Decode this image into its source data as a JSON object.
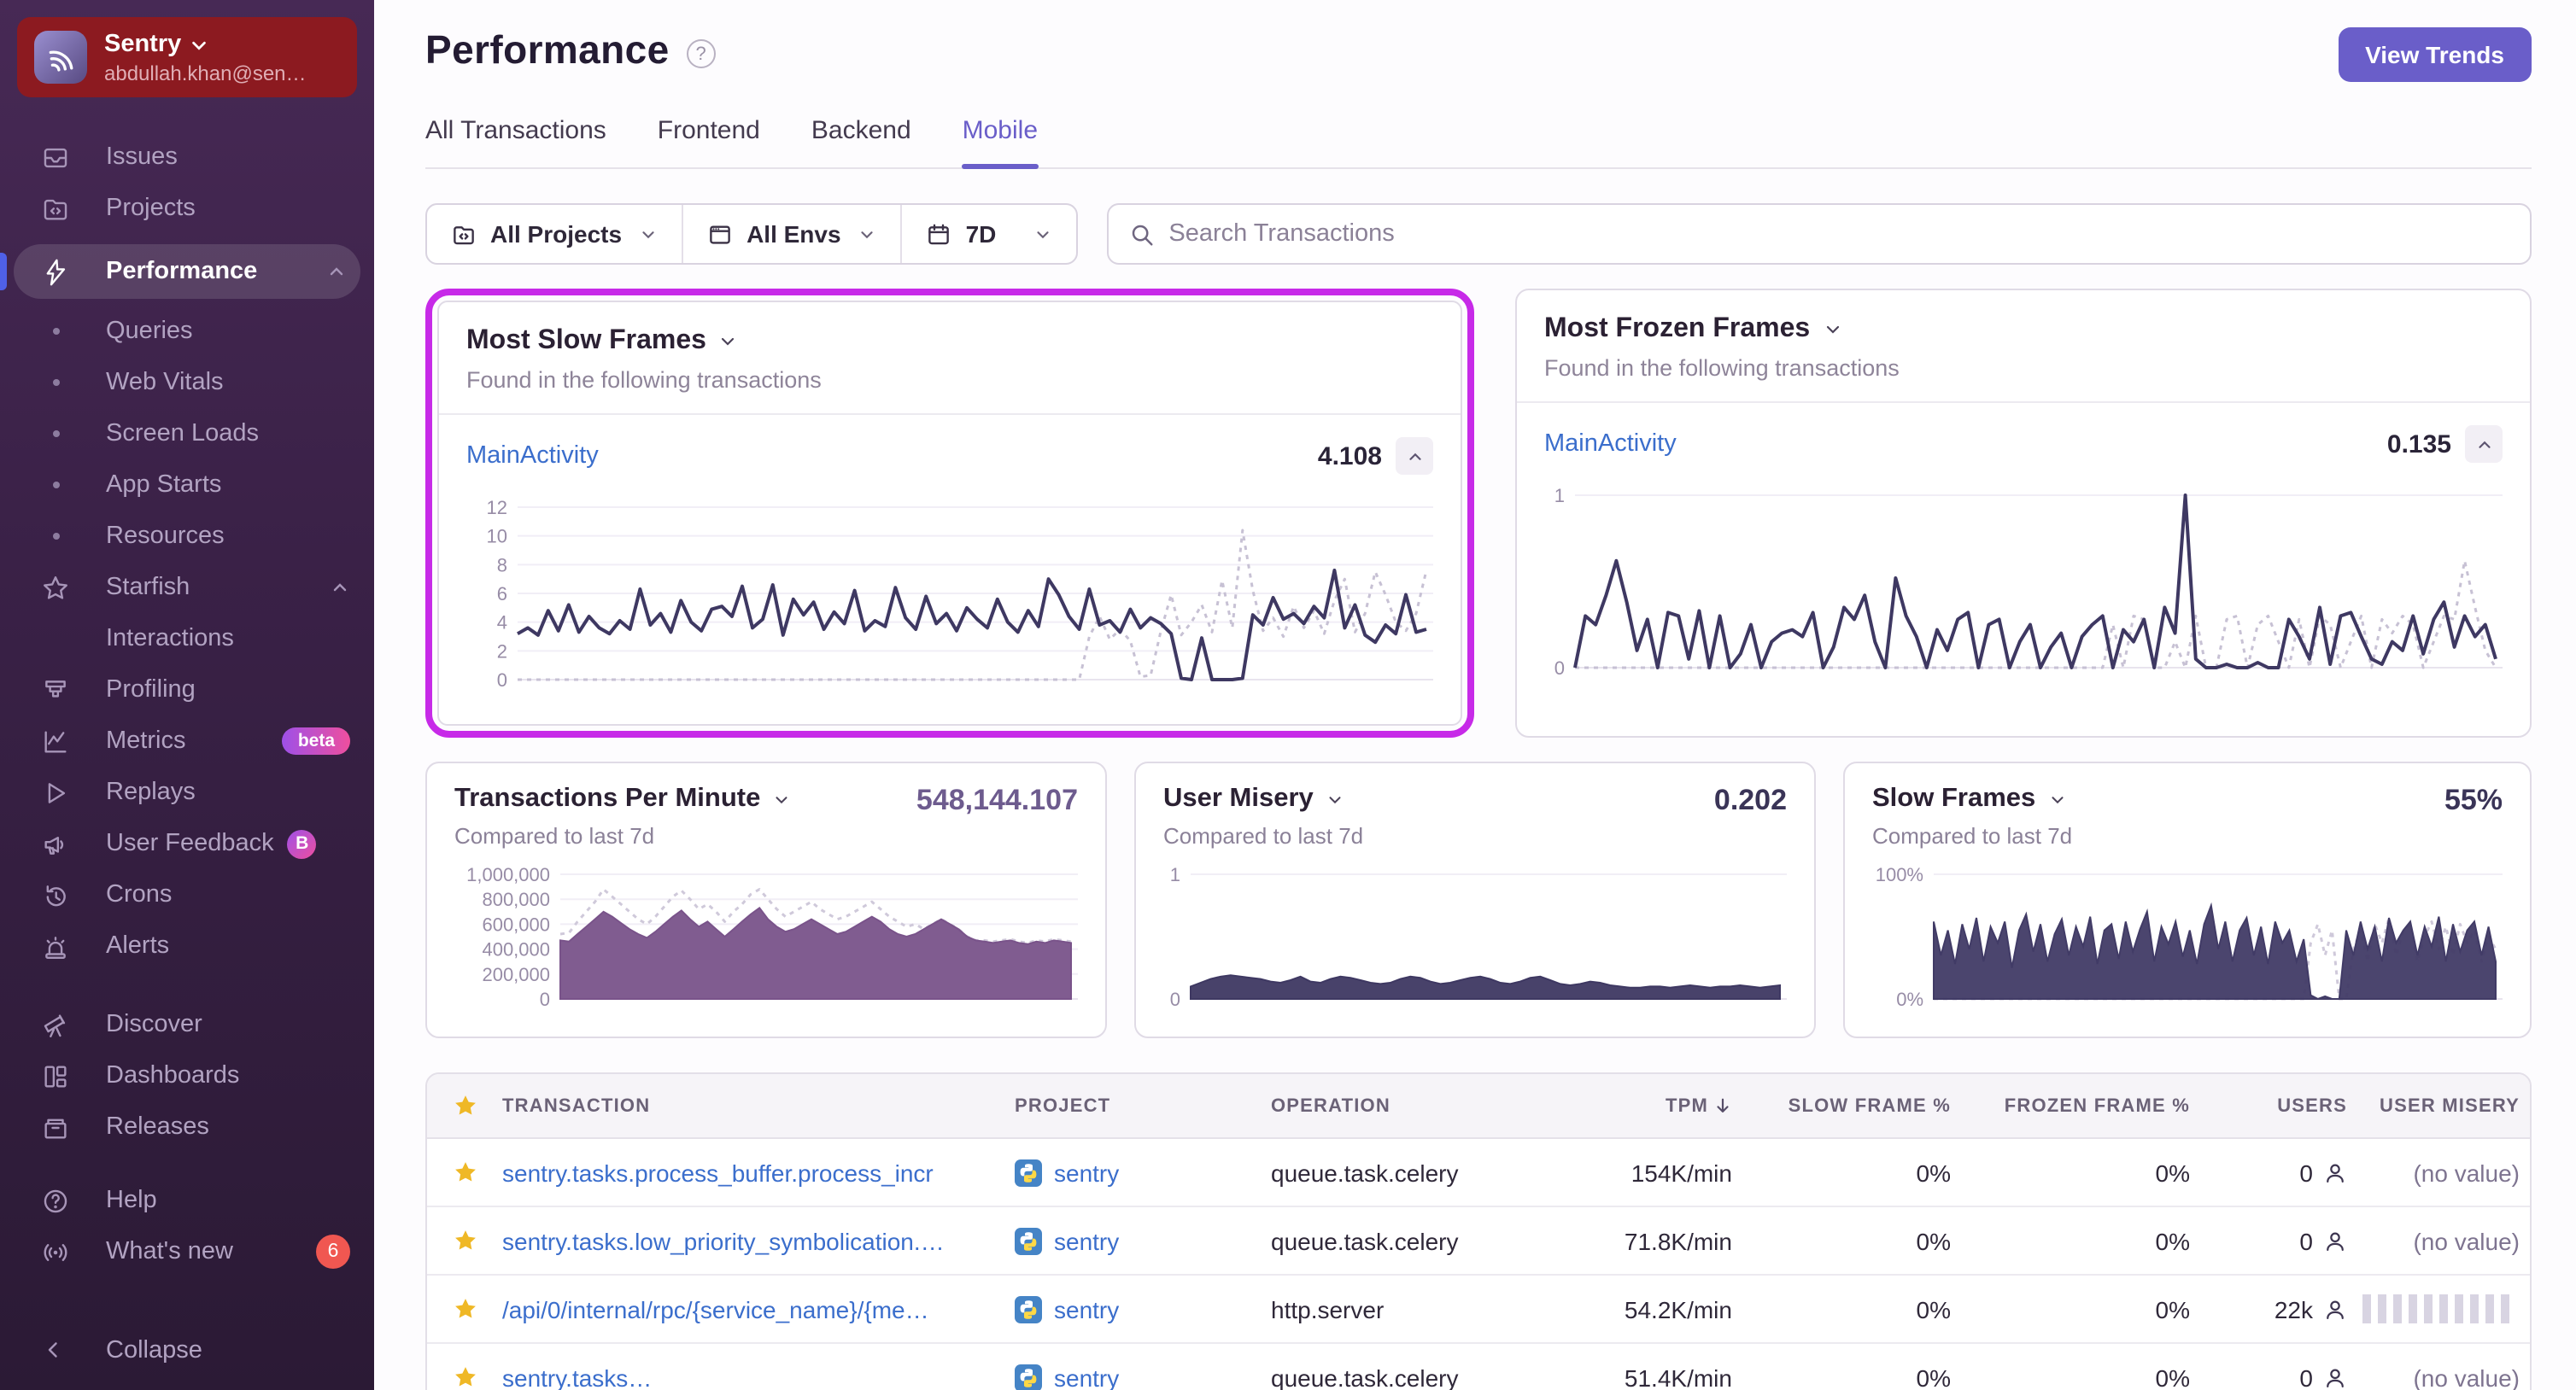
{
  "app": {
    "accent": "#6a5ec9",
    "highlight_ring": "#c72ae8",
    "link_blue": "#3b6ecc"
  },
  "sidebar": {
    "org": "Sentry",
    "email": "abdullah.khan@sen…",
    "items": [
      {
        "label": "Issues"
      },
      {
        "label": "Projects"
      },
      {
        "label": "Performance"
      },
      {
        "label": "Queries"
      },
      {
        "label": "Web Vitals"
      },
      {
        "label": "Screen Loads"
      },
      {
        "label": "App Starts"
      },
      {
        "label": "Resources"
      },
      {
        "label": "Starfish"
      },
      {
        "label": "Interactions"
      },
      {
        "label": "Profiling"
      },
      {
        "label": "Metrics",
        "badge": "beta"
      },
      {
        "label": "Replays"
      },
      {
        "label": "User Feedback",
        "badge": "B"
      },
      {
        "label": "Crons"
      },
      {
        "label": "Alerts"
      },
      {
        "label": "Discover"
      },
      {
        "label": "Dashboards"
      },
      {
        "label": "Releases"
      },
      {
        "label": "Help"
      },
      {
        "label": "What's new",
        "badge": "6"
      },
      {
        "label": "Collapse"
      }
    ]
  },
  "header": {
    "title": "Performance",
    "help": "?",
    "view_trends": "View Trends",
    "tabs": [
      {
        "label": "All Transactions"
      },
      {
        "label": "Frontend"
      },
      {
        "label": "Backend"
      },
      {
        "label": "Mobile"
      }
    ]
  },
  "filters": {
    "projects": "All Projects",
    "envs": "All Envs",
    "period": "7D",
    "search_placeholder": "Search Transactions"
  },
  "cards": [
    {
      "title": "Most Slow Frames",
      "subtitle": "Found in the following transactions",
      "transaction": "MainActivity",
      "value": "4.108"
    },
    {
      "title": "Most Frozen Frames",
      "subtitle": "Found in the following transactions",
      "transaction": "MainActivity",
      "value": "0.135"
    }
  ],
  "widgets": [
    {
      "title": "Transactions Per Minute",
      "value": "548,144.107",
      "subtitle": "Compared to last 7d"
    },
    {
      "title": "User Misery",
      "value": "0.202",
      "subtitle": "Compared to last 7d"
    },
    {
      "title": "Slow Frames",
      "value": "55%",
      "subtitle": "Compared to last 7d"
    }
  ],
  "table": {
    "headers": {
      "transaction": "Transaction",
      "project": "Project",
      "operation": "Operation",
      "tpm": "TPM",
      "slow": "Slow Frame %",
      "frozen": "Frozen Frame %",
      "users": "Users",
      "misery": "User Misery"
    },
    "rows": [
      {
        "transaction": "sentry.tasks.process_buffer.process_incr",
        "project": "sentry",
        "operation": "queue.task.celery",
        "tpm": "154K/min",
        "slow": "0%",
        "frozen": "0%",
        "users": "0",
        "misery": "(no value)",
        "misery_type": "text"
      },
      {
        "transaction": "sentry.tasks.low_priority_symbolication.…",
        "project": "sentry",
        "operation": "queue.task.celery",
        "tpm": "71.8K/min",
        "slow": "0%",
        "frozen": "0%",
        "users": "0",
        "misery": "(no value)",
        "misery_type": "text"
      },
      {
        "transaction": "/api/0/internal/rpc/{service_name}/{me…",
        "project": "sentry",
        "operation": "http.server",
        "tpm": "54.2K/min",
        "slow": "0%",
        "frozen": "0%",
        "users": "22k",
        "misery": "",
        "misery_type": "bars"
      },
      {
        "transaction": "sentry.tasks…",
        "project": "sentry",
        "operation": "queue.task.celery",
        "tpm": "51.4K/min",
        "slow": "0%",
        "frozen": "0%",
        "users": "0",
        "misery": "(no value)",
        "misery_type": "text"
      }
    ]
  },
  "chart_data": {
    "note": "see charts key — all series data for the five charts on screen"
  },
  "charts": {
    "slow_frames_card": {
      "type": "line",
      "ylim": [
        0,
        12
      ],
      "axis_w": 30,
      "yticks": [
        {
          "v": 0,
          "label": "0"
        },
        {
          "v": 2,
          "label": "2"
        },
        {
          "v": 4,
          "label": "4"
        },
        {
          "v": 6,
          "label": "6"
        },
        {
          "v": 8,
          "label": "8"
        },
        {
          "v": 10,
          "label": "10"
        },
        {
          "v": 12,
          "label": "12"
        }
      ],
      "series": [
        {
          "name": "previous period",
          "color": "#c7c1d4",
          "dash": true,
          "width": 1.5,
          "values": [
            0,
            0,
            0,
            0,
            0,
            0,
            0,
            0,
            0,
            0,
            0,
            0,
            0,
            0,
            0,
            0,
            0,
            0,
            0,
            0,
            0,
            0,
            0,
            0,
            0,
            0,
            0,
            0,
            0,
            0,
            0,
            0,
            0,
            0,
            0,
            0,
            0,
            0,
            0,
            0,
            0,
            0,
            0,
            0,
            0,
            0,
            0,
            0,
            0,
            0,
            0,
            0,
            0,
            0,
            0,
            0,
            3.0,
            4.4,
            2.8,
            3.5,
            2.7,
            0.2,
            0.3,
            3.4,
            5.9,
            3.1,
            4.0,
            5.2,
            3.3,
            6.9,
            3.6,
            10.4,
            6.2,
            3.4,
            4.3,
            3.0,
            5.1,
            3.6,
            4.8,
            3.2,
            5.5,
            7.0,
            3.3,
            4.6,
            7.5,
            5.9,
            4.0,
            3.4,
            4.6,
            7.6
          ]
        },
        {
          "name": "current period",
          "color": "#3e3862",
          "width": 2,
          "values": [
            3.2,
            3.6,
            3.1,
            4.8,
            3.4,
            5.2,
            3.3,
            4.4,
            3.6,
            3.2,
            4.1,
            3.5,
            6.3,
            3.8,
            4.6,
            3.3,
            5.5,
            4.0,
            3.4,
            4.9,
            5.1,
            4.4,
            6.5,
            3.6,
            4.2,
            6.6,
            3.1,
            5.6,
            4.5,
            5.4,
            3.5,
            4.7,
            3.9,
            6.2,
            3.4,
            4.1,
            3.7,
            6.4,
            4.3,
            3.5,
            5.8,
            3.9,
            4.6,
            3.4,
            5.0,
            4.2,
            3.6,
            5.6,
            4.0,
            3.3,
            4.8,
            3.7,
            7.0,
            5.9,
            4.4,
            3.5,
            6.3,
            3.8,
            4.1,
            3.3,
            4.9,
            3.6,
            4.3,
            3.9,
            3.2,
            0.1,
            0.0,
            2.9,
            0.0,
            0.0,
            0.0,
            0.1,
            4.5,
            3.8,
            5.7,
            4.2,
            4.6,
            3.9,
            5.1,
            4.3,
            7.6,
            3.6,
            5.2,
            3.1,
            2.6,
            3.8,
            3.2,
            5.9,
            3.3,
            3.5
          ]
        }
      ]
    },
    "frozen_frames_card": {
      "type": "line",
      "ylim": [
        0,
        1
      ],
      "axis_w": 18,
      "yticks": [
        {
          "v": 0,
          "label": "0"
        },
        {
          "v": 1,
          "label": "1"
        }
      ],
      "series": [
        {
          "name": "previous period",
          "color": "#c7c1d4",
          "dash": true,
          "width": 1.5,
          "values": [
            0,
            0,
            0,
            0,
            0,
            0,
            0,
            0,
            0,
            0,
            0,
            0,
            0,
            0,
            0,
            0,
            0,
            0,
            0,
            0,
            0,
            0,
            0,
            0,
            0,
            0,
            0,
            0,
            0,
            0,
            0,
            0,
            0,
            0,
            0,
            0,
            0,
            0,
            0,
            0,
            0,
            0,
            0,
            0,
            0,
            0,
            0,
            0,
            0,
            0,
            0,
            0,
            0.25,
            0,
            0.3,
            0.28,
            0,
            0,
            0.15,
            0,
            0.3,
            0,
            0,
            0.28,
            0.3,
            0,
            0.25,
            0.3,
            0.15,
            0,
            0.28,
            0,
            0.3,
            0.25,
            0,
            0.15,
            0.3,
            0,
            0.28,
            0.2,
            0.3,
            0.25,
            0,
            0.15,
            0.3,
            0.28,
            0.62,
            0.35,
            0.1,
            0
          ]
        },
        {
          "name": "current period",
          "color": "#3e3862",
          "width": 2,
          "values": [
            0,
            0.3,
            0.25,
            0.42,
            0.62,
            0.38,
            0.1,
            0.28,
            0,
            0.32,
            0.3,
            0.05,
            0.33,
            0,
            0.3,
            0,
            0.08,
            0.25,
            0,
            0.15,
            0.2,
            0.22,
            0.18,
            0.32,
            0,
            0.12,
            0.35,
            0.28,
            0.42,
            0.15,
            0,
            0.52,
            0.3,
            0.18,
            0,
            0.22,
            0.1,
            0.28,
            0.32,
            0,
            0.25,
            0.28,
            0,
            0.15,
            0.25,
            0,
            0.12,
            0.2,
            0,
            0.18,
            0.25,
            0.3,
            0,
            0.22,
            0.15,
            0.28,
            0,
            0.35,
            0.2,
            1.0,
            0.05,
            0,
            0,
            0.02,
            0,
            0,
            0.03,
            0,
            0,
            0.28,
            0.18,
            0.05,
            0.35,
            0.02,
            0.3,
            0.32,
            0.18,
            0.05,
            0.02,
            0.15,
            0.1,
            0.3,
            0.08,
            0.28,
            0.38,
            0.12,
            0.3,
            0.18,
            0.25,
            0.05
          ]
        }
      ]
    },
    "tpm_widget": {
      "type": "area",
      "ylim": [
        0,
        1000000
      ],
      "axis_w": 62,
      "yticks": [
        {
          "v": 0,
          "label": "0"
        },
        {
          "v": 200000,
          "label": "200,000"
        },
        {
          "v": 400000,
          "label": "400,000"
        },
        {
          "v": 600000,
          "label": "600,000"
        },
        {
          "v": 800000,
          "label": "800,000"
        },
        {
          "v": 1000000,
          "label": "1,000,000"
        }
      ],
      "series": [
        {
          "name": "previous period",
          "color": "#cfc9da",
          "dash": true,
          "width": 1.5,
          "values": [
            520000,
            530000,
            620000,
            700000,
            780000,
            880000,
            820000,
            760000,
            700000,
            640000,
            600000,
            660000,
            740000,
            820000,
            870000,
            800000,
            720000,
            760000,
            700000,
            620000,
            700000,
            760000,
            840000,
            880000,
            800000,
            720000,
            660000,
            700000,
            740000,
            780000,
            720000,
            680000,
            640000,
            660000,
            700000,
            740000,
            780000,
            720000,
            660000,
            620000,
            580000,
            600000,
            560000,
            600000,
            640000,
            600000,
            560000,
            500000,
            470000,
            470000,
            460000,
            470000,
            480000,
            460000,
            450000,
            470000,
            460000,
            480000,
            470000,
            460000
          ]
        },
        {
          "name": "current period",
          "color": "#79538a",
          "area": true,
          "width": 1.5,
          "values": [
            470000,
            460000,
            520000,
            580000,
            640000,
            700000,
            660000,
            610000,
            560000,
            520000,
            490000,
            540000,
            600000,
            660000,
            710000,
            640000,
            580000,
            620000,
            560000,
            500000,
            560000,
            620000,
            680000,
            730000,
            640000,
            580000,
            540000,
            560000,
            600000,
            640000,
            600000,
            560000,
            520000,
            540000,
            580000,
            620000,
            660000,
            620000,
            560000,
            520000,
            500000,
            520000,
            560000,
            600000,
            640000,
            600000,
            560000,
            500000,
            470000,
            460000,
            450000,
            460000,
            470000,
            450000,
            440000,
            460000,
            450000,
            470000,
            460000,
            450000
          ]
        }
      ]
    },
    "misery_widget": {
      "type": "area",
      "ylim": [
        0,
        1
      ],
      "axis_w": 16,
      "yticks": [
        {
          "v": 0,
          "label": "0"
        },
        {
          "v": 1,
          "label": "1"
        }
      ],
      "series": [
        {
          "name": "current period",
          "color": "#3e3862",
          "area": true,
          "width": 1.5,
          "values": [
            0.1,
            0.13,
            0.16,
            0.18,
            0.19,
            0.18,
            0.17,
            0.16,
            0.14,
            0.13,
            0.15,
            0.18,
            0.14,
            0.13,
            0.16,
            0.18,
            0.17,
            0.15,
            0.13,
            0.12,
            0.13,
            0.16,
            0.18,
            0.17,
            0.14,
            0.12,
            0.13,
            0.15,
            0.17,
            0.18,
            0.16,
            0.13,
            0.12,
            0.14,
            0.17,
            0.18,
            0.15,
            0.12,
            0.11,
            0.12,
            0.14,
            0.13,
            0.11,
            0.1,
            0.09,
            0.09,
            0.1,
            0.1,
            0.09,
            0.1,
            0.11,
            0.1,
            0.09,
            0.1,
            0.1,
            0.11,
            0.1,
            0.09,
            0.1,
            0.11
          ]
        }
      ]
    },
    "slow_frames_widget": {
      "type": "area",
      "ylim": [
        0,
        100
      ],
      "axis_w": 36,
      "yticks": [
        {
          "v": 0,
          "label": "0%"
        },
        {
          "v": 100,
          "label": "100%"
        }
      ],
      "series": [
        {
          "name": "previous period",
          "color": "#cfc9da",
          "dash": true,
          "width": 1.5,
          "values": [
            0,
            0,
            0,
            0,
            0,
            0,
            0,
            0,
            0,
            0,
            0,
            0,
            0,
            0,
            0,
            0,
            0,
            0,
            0,
            0,
            0,
            0,
            0,
            0,
            0,
            0,
            0,
            0,
            0,
            0,
            0,
            0,
            0,
            0,
            0,
            0,
            0,
            0,
            0,
            0,
            0,
            0,
            0,
            0,
            0,
            0,
            0,
            0,
            0,
            0,
            0,
            0,
            0,
            45,
            60,
            35,
            55,
            0,
            0,
            40,
            55,
            30,
            60,
            45,
            65,
            35,
            55,
            60,
            30,
            50,
            62,
            40,
            58,
            35,
            60,
            45,
            55,
            30,
            50,
            40
          ]
        },
        {
          "name": "current period",
          "color": "#413b66",
          "area": true,
          "width": 1.5,
          "values": [
            62,
            35,
            55,
            28,
            60,
            40,
            65,
            30,
            58,
            45,
            62,
            25,
            55,
            68,
            38,
            60,
            30,
            52,
            64,
            35,
            58,
            42,
            66,
            28,
            55,
            60,
            32,
            62,
            38,
            56,
            70,
            30,
            58,
            44,
            62,
            34,
            55,
            28,
            60,
            75,
            40,
            62,
            30,
            55,
            65,
            35,
            58,
            28,
            62,
            45,
            55,
            30,
            48,
            3,
            0,
            2,
            0,
            0,
            55,
            35,
            62,
            40,
            58,
            30,
            65,
            45,
            55,
            62,
            35,
            58,
            42,
            66,
            30,
            60,
            38,
            55,
            62,
            35,
            58,
            30
          ]
        }
      ]
    }
  }
}
